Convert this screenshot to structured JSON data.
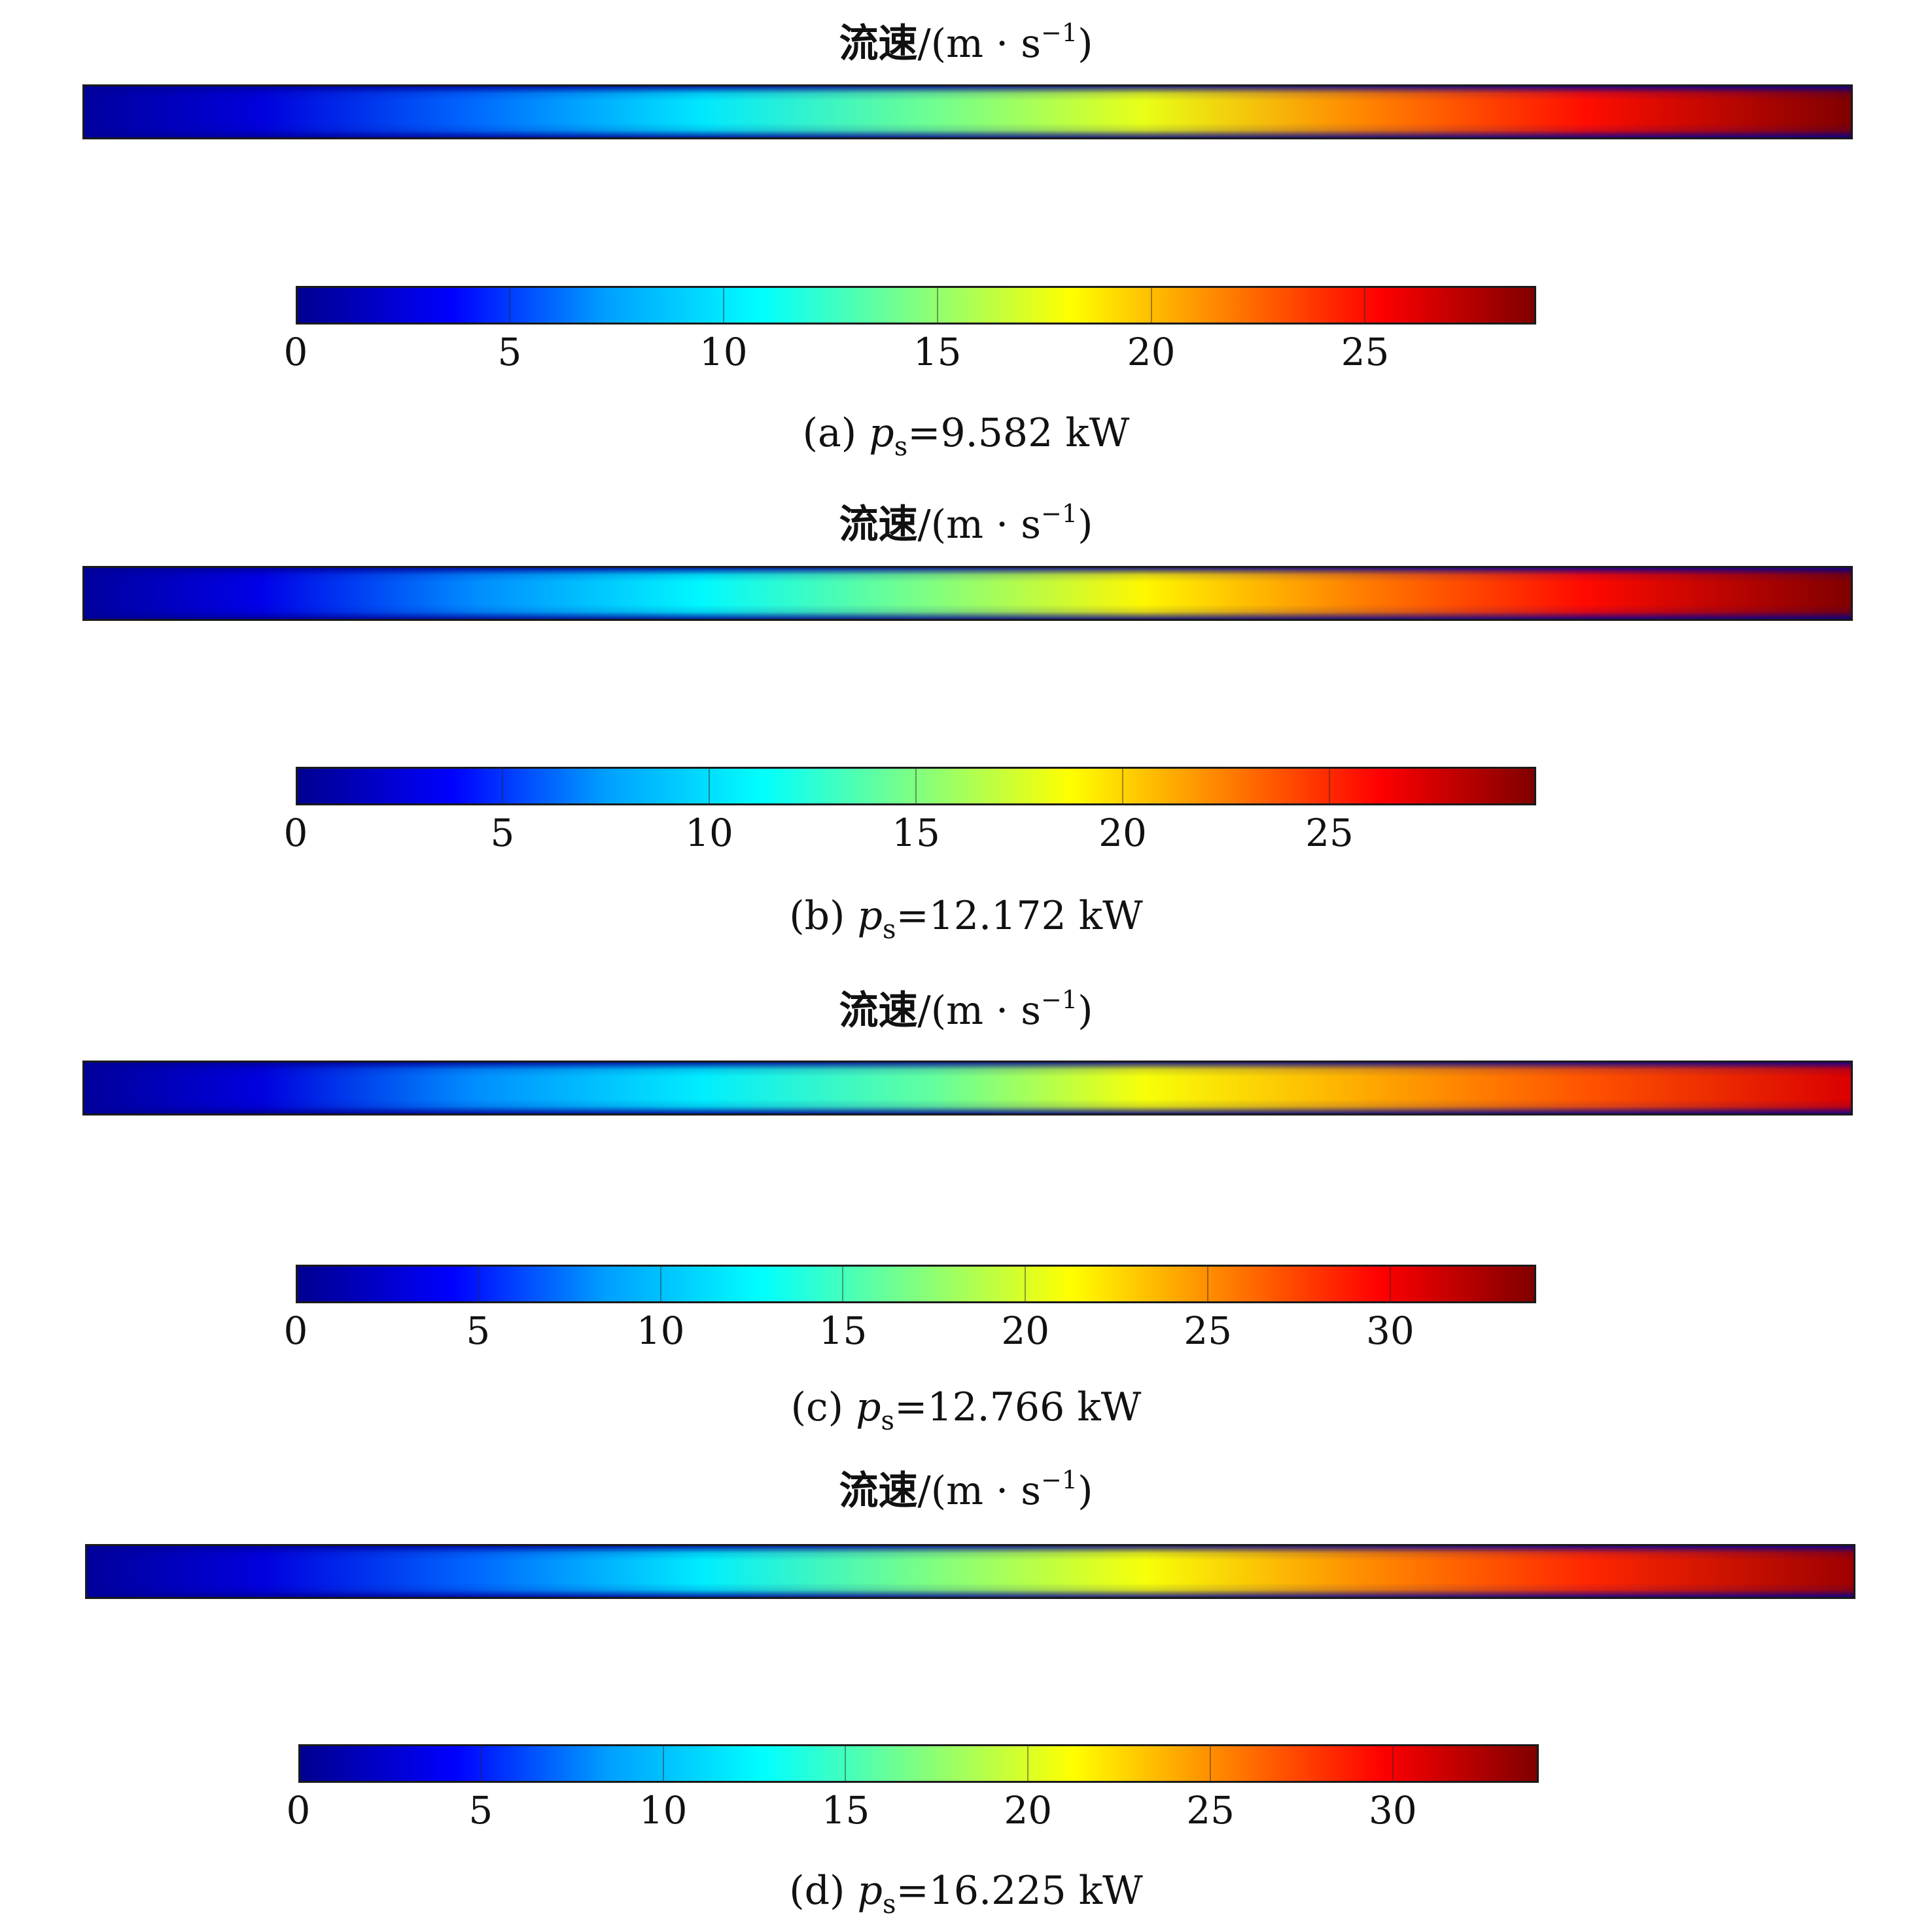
{
  "colormap": [
    "#00008f",
    "#0000ff",
    "#00a0ff",
    "#00ffff",
    "#80ff80",
    "#ffff00",
    "#ff8000",
    "#ff0000",
    "#800000"
  ],
  "chart_data": [
    {
      "type": "heatmap",
      "label": "(a)",
      "param_symbol": "p",
      "param_sub": "s",
      "param_value": "=9.582 kW",
      "title_cn": "流速",
      "title_unit": "/(m · s",
      "title_exp": "−1",
      "title_close": ")",
      "colorbar_range": [
        0,
        29
      ],
      "colorbar_ticks": [
        "0",
        "5",
        "10",
        "15",
        "20",
        "25"
      ],
      "colorbar_tick_values": [
        0,
        5,
        10,
        15,
        20,
        25
      ],
      "centerline_profile": [
        {
          "x": 0.0,
          "v": 0.5
        },
        {
          "x": 0.1,
          "v": 2.5
        },
        {
          "x": 0.22,
          "v": 6
        },
        {
          "x": 0.35,
          "v": 10
        },
        {
          "x": 0.48,
          "v": 14
        },
        {
          "x": 0.6,
          "v": 17.5
        },
        {
          "x": 0.72,
          "v": 21.5
        },
        {
          "x": 0.85,
          "v": 25
        },
        {
          "x": 1.0,
          "v": 29
        }
      ]
    },
    {
      "type": "heatmap",
      "label": "(b)",
      "param_symbol": "p",
      "param_sub": "s",
      "param_value": "=12.172 kW",
      "title_cn": "流速",
      "title_unit": "/(m · s",
      "title_exp": "−1",
      "title_close": ")",
      "colorbar_range": [
        0,
        30
      ],
      "colorbar_ticks": [
        "0",
        "5",
        "10",
        "15",
        "20",
        "25"
      ],
      "colorbar_tick_values": [
        0,
        5,
        10,
        15,
        20,
        25
      ],
      "centerline_profile": [
        {
          "x": 0.0,
          "v": 0.5
        },
        {
          "x": 0.1,
          "v": 3
        },
        {
          "x": 0.22,
          "v": 7
        },
        {
          "x": 0.35,
          "v": 11
        },
        {
          "x": 0.48,
          "v": 15
        },
        {
          "x": 0.6,
          "v": 19
        },
        {
          "x": 0.72,
          "v": 22.5
        },
        {
          "x": 0.85,
          "v": 26
        },
        {
          "x": 1.0,
          "v": 30
        }
      ]
    },
    {
      "type": "heatmap",
      "label": "(c)",
      "param_symbol": "p",
      "param_sub": "s",
      "param_value": "=12.766 kW",
      "title_cn": "流速",
      "title_unit": "/(m · s",
      "title_exp": "−1",
      "title_close": ")",
      "colorbar_range": [
        0,
        34
      ],
      "colorbar_ticks": [
        "0",
        "5",
        "10",
        "15",
        "20",
        "25",
        "30"
      ],
      "colorbar_tick_values": [
        0,
        5,
        10,
        15,
        20,
        25,
        30
      ],
      "centerline_profile": [
        {
          "x": 0.0,
          "v": 0.5
        },
        {
          "x": 0.1,
          "v": 3
        },
        {
          "x": 0.22,
          "v": 8
        },
        {
          "x": 0.35,
          "v": 12
        },
        {
          "x": 0.48,
          "v": 16
        },
        {
          "x": 0.6,
          "v": 21
        },
        {
          "x": 0.72,
          "v": 24
        },
        {
          "x": 0.85,
          "v": 27
        },
        {
          "x": 1.0,
          "v": 31
        }
      ]
    },
    {
      "type": "heatmap",
      "label": "(d)",
      "param_symbol": "p",
      "param_sub": "s",
      "param_value": "=16.225 kW",
      "title_cn": "流速",
      "title_unit": "/(m · s",
      "title_exp": "−1",
      "title_close": ")",
      "colorbar_range": [
        0,
        34
      ],
      "colorbar_ticks": [
        "0",
        "5",
        "10",
        "15",
        "20",
        "25",
        "30"
      ],
      "colorbar_tick_values": [
        0,
        5,
        10,
        15,
        20,
        25,
        30
      ],
      "centerline_profile": [
        {
          "x": 0.0,
          "v": 0.5
        },
        {
          "x": 0.1,
          "v": 3
        },
        {
          "x": 0.22,
          "v": 7
        },
        {
          "x": 0.35,
          "v": 12
        },
        {
          "x": 0.48,
          "v": 17
        },
        {
          "x": 0.6,
          "v": 21
        },
        {
          "x": 0.72,
          "v": 25
        },
        {
          "x": 0.85,
          "v": 28.5
        },
        {
          "x": 1.0,
          "v": 33
        }
      ]
    }
  ]
}
